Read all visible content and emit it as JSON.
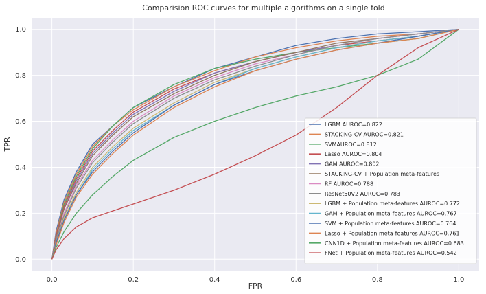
{
  "chart_data": {
    "type": "line",
    "title": "Comparision ROC curves for multiple algorithms on a single fold",
    "xlabel": "FPR",
    "ylabel": "TPR",
    "xlim": [
      -0.05,
      1.05
    ],
    "ylim": [
      -0.05,
      1.05
    ],
    "xticks": [
      "0.0",
      "0.2",
      "0.4",
      "0.6",
      "0.8",
      "1.0"
    ],
    "yticks": [
      "0.0",
      "0.2",
      "0.4",
      "0.6",
      "0.8",
      "1.0"
    ],
    "grid": true,
    "background": "#eaeaf2",
    "legend_position": "lower-right",
    "series": [
      {
        "name": "LGBM AUROC=0.822",
        "color": "#4c72b0",
        "x": [
          0,
          0.01,
          0.03,
          0.06,
          0.1,
          0.15,
          0.2,
          0.3,
          0.4,
          0.5,
          0.6,
          0.7,
          0.8,
          0.9,
          1.0
        ],
        "y": [
          0,
          0.12,
          0.26,
          0.38,
          0.5,
          0.58,
          0.66,
          0.75,
          0.83,
          0.88,
          0.93,
          0.96,
          0.98,
          0.99,
          1.0
        ]
      },
      {
        "name": "STACKING-CV AUROC=0.821",
        "color": "#dd8452",
        "x": [
          0,
          0.01,
          0.03,
          0.06,
          0.1,
          0.15,
          0.2,
          0.3,
          0.4,
          0.5,
          0.6,
          0.7,
          0.8,
          0.9,
          1.0
        ],
        "y": [
          0,
          0.11,
          0.25,
          0.37,
          0.49,
          0.58,
          0.65,
          0.75,
          0.82,
          0.88,
          0.92,
          0.95,
          0.97,
          0.98,
          1.0
        ]
      },
      {
        "name": "SVMAUROC=0.812",
        "color": "#55a868",
        "x": [
          0,
          0.01,
          0.03,
          0.06,
          0.1,
          0.15,
          0.2,
          0.3,
          0.4,
          0.5,
          0.6,
          0.7,
          0.8,
          0.9,
          1.0
        ],
        "y": [
          0,
          0.1,
          0.24,
          0.36,
          0.48,
          0.58,
          0.66,
          0.76,
          0.83,
          0.87,
          0.9,
          0.92,
          0.94,
          0.96,
          1.0
        ]
      },
      {
        "name": "Lasso AUROC=0.804",
        "color": "#c44e52",
        "x": [
          0,
          0.01,
          0.03,
          0.06,
          0.1,
          0.15,
          0.2,
          0.3,
          0.4,
          0.5,
          0.6,
          0.7,
          0.8,
          0.9,
          1.0
        ],
        "y": [
          0,
          0.1,
          0.23,
          0.35,
          0.47,
          0.56,
          0.64,
          0.74,
          0.81,
          0.86,
          0.9,
          0.93,
          0.95,
          0.97,
          1.0
        ]
      },
      {
        "name": "GAM AUROC=0.802",
        "color": "#8172b3",
        "x": [
          0,
          0.01,
          0.03,
          0.06,
          0.1,
          0.15,
          0.2,
          0.3,
          0.4,
          0.5,
          0.6,
          0.7,
          0.8,
          0.9,
          1.0
        ],
        "y": [
          0,
          0.09,
          0.22,
          0.34,
          0.46,
          0.55,
          0.63,
          0.73,
          0.81,
          0.86,
          0.9,
          0.93,
          0.96,
          0.98,
          1.0
        ]
      },
      {
        "name": "STACKING-CV + Population meta-features",
        "color": "#937860",
        "x": [
          0,
          0.01,
          0.03,
          0.06,
          0.1,
          0.15,
          0.2,
          0.3,
          0.4,
          0.5,
          0.6,
          0.7,
          0.8,
          0.9,
          1.0
        ],
        "y": [
          0,
          0.09,
          0.22,
          0.33,
          0.45,
          0.54,
          0.62,
          0.72,
          0.8,
          0.86,
          0.9,
          0.94,
          0.96,
          0.98,
          1.0
        ]
      },
      {
        "name": "RF AUROC=0.788",
        "color": "#da8bc3",
        "x": [
          0,
          0.01,
          0.03,
          0.06,
          0.1,
          0.15,
          0.2,
          0.3,
          0.4,
          0.5,
          0.6,
          0.7,
          0.8,
          0.9,
          1.0
        ],
        "y": [
          0,
          0.08,
          0.2,
          0.32,
          0.43,
          0.52,
          0.6,
          0.71,
          0.79,
          0.85,
          0.89,
          0.93,
          0.96,
          0.98,
          1.0
        ]
      },
      {
        "name": "ResNet50V2 AUROC=0.783",
        "color": "#8c8c8c",
        "x": [
          0,
          0.01,
          0.03,
          0.06,
          0.1,
          0.15,
          0.2,
          0.3,
          0.4,
          0.5,
          0.6,
          0.7,
          0.8,
          0.9,
          1.0
        ],
        "y": [
          0,
          0.08,
          0.19,
          0.31,
          0.42,
          0.51,
          0.59,
          0.7,
          0.78,
          0.84,
          0.89,
          0.93,
          0.96,
          0.98,
          1.0
        ]
      },
      {
        "name": "LGBM + Population meta-features AUROC=0.772",
        "color": "#ccb974",
        "x": [
          0,
          0.01,
          0.03,
          0.06,
          0.1,
          0.15,
          0.2,
          0.3,
          0.4,
          0.5,
          0.6,
          0.7,
          0.8,
          0.9,
          1.0
        ],
        "y": [
          0,
          0.07,
          0.18,
          0.29,
          0.4,
          0.49,
          0.57,
          0.68,
          0.77,
          0.83,
          0.88,
          0.92,
          0.95,
          0.97,
          1.0
        ]
      },
      {
        "name": "GAM + Population meta-features AUROC=0.767",
        "color": "#64b5cd",
        "x": [
          0,
          0.01,
          0.03,
          0.06,
          0.1,
          0.15,
          0.2,
          0.3,
          0.4,
          0.5,
          0.6,
          0.7,
          0.8,
          0.9,
          1.0
        ],
        "y": [
          0,
          0.07,
          0.17,
          0.28,
          0.39,
          0.48,
          0.56,
          0.67,
          0.76,
          0.83,
          0.88,
          0.92,
          0.95,
          0.97,
          1.0
        ]
      },
      {
        "name": "SVM + Population meta-features AUROC=0.764",
        "color": "#4c72b0",
        "x": [
          0,
          0.01,
          0.03,
          0.06,
          0.1,
          0.15,
          0.2,
          0.3,
          0.4,
          0.5,
          0.6,
          0.7,
          0.8,
          0.9,
          1.0
        ],
        "y": [
          0,
          0.07,
          0.17,
          0.28,
          0.38,
          0.47,
          0.55,
          0.67,
          0.76,
          0.82,
          0.87,
          0.91,
          0.94,
          0.97,
          1.0
        ]
      },
      {
        "name": "Lasso + Population meta-features AUROC=0.761",
        "color": "#dd8452",
        "x": [
          0,
          0.01,
          0.03,
          0.06,
          0.1,
          0.15,
          0.2,
          0.3,
          0.4,
          0.5,
          0.6,
          0.7,
          0.8,
          0.9,
          1.0
        ],
        "y": [
          0,
          0.06,
          0.16,
          0.27,
          0.37,
          0.46,
          0.54,
          0.66,
          0.75,
          0.82,
          0.87,
          0.91,
          0.94,
          0.96,
          1.0
        ]
      },
      {
        "name": "CNN1D + Population meta-features AUROC=0.683",
        "color": "#55a868",
        "x": [
          0,
          0.01,
          0.03,
          0.06,
          0.1,
          0.15,
          0.2,
          0.3,
          0.4,
          0.5,
          0.6,
          0.7,
          0.8,
          0.9,
          1.0
        ],
        "y": [
          0,
          0.05,
          0.12,
          0.2,
          0.28,
          0.36,
          0.43,
          0.53,
          0.6,
          0.66,
          0.71,
          0.75,
          0.8,
          0.87,
          1.0
        ]
      },
      {
        "name": "FNet + Population meta-features AUROC=0.542",
        "color": "#c44e52",
        "x": [
          0,
          0.01,
          0.03,
          0.06,
          0.1,
          0.15,
          0.2,
          0.3,
          0.4,
          0.5,
          0.6,
          0.7,
          0.8,
          0.9,
          1.0
        ],
        "y": [
          0,
          0.04,
          0.09,
          0.14,
          0.18,
          0.21,
          0.24,
          0.3,
          0.37,
          0.45,
          0.54,
          0.66,
          0.8,
          0.92,
          1.0
        ]
      }
    ]
  }
}
